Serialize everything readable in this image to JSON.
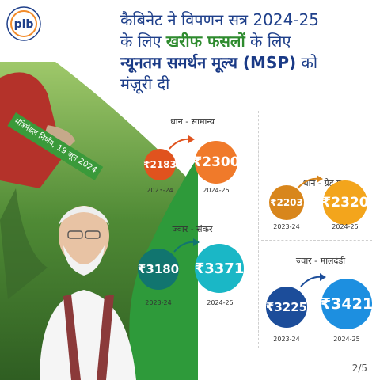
{
  "logo": {
    "icon": "pib-logo",
    "text": "pib"
  },
  "headline": {
    "line1": "कैबिनेट ने विपणन सत्र 2024-25",
    "line2a": "के लिए ",
    "line2b": "खरीफ फसलों",
    "line2c": " के लिए",
    "line3a": "न्यूनतम समर्थन मूल्य (MSP)",
    "line3b": " को",
    "line4": "मंज़ूरी दी"
  },
  "banner": {
    "text": "मंत्रिमंडल निर्णय, 19 जून 2024"
  },
  "crops": [
    {
      "name": "धान - सामान्य",
      "old_value": "₹2183",
      "new_value": "₹2300",
      "old_year": "2023-24",
      "new_year": "2024-25",
      "old_color": "#e0531e",
      "new_color": "#f07a2a"
    },
    {
      "name": "धान - ग्रेड ए",
      "old_value": "₹2203",
      "new_value": "₹2320",
      "old_year": "2023-24",
      "new_year": "2024-25",
      "old_color": "#d8861c",
      "new_color": "#f3a51c"
    },
    {
      "name": "ज्वार - संकर",
      "old_value": "₹3180",
      "new_value": "₹3371",
      "old_year": "2023-24",
      "new_year": "2024-25",
      "old_color": "#11756f",
      "new_color": "#1ab7c6"
    },
    {
      "name": "ज्वार - मालदंडी",
      "old_value": "₹3225",
      "new_value": "₹3421",
      "old_year": "2023-24",
      "new_year": "2024-25",
      "old_color": "#1c4d9a",
      "new_color": "#1d8fe0"
    }
  ],
  "page_number": "2/5"
}
